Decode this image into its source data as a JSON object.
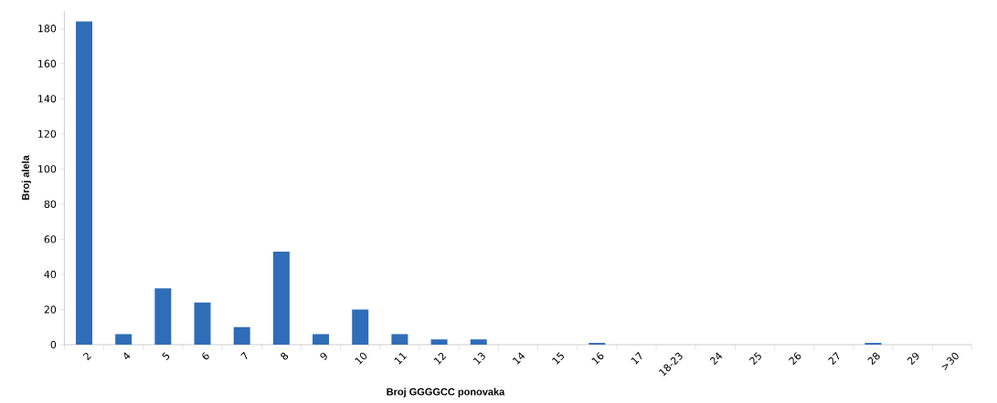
{
  "chart_data": {
    "type": "bar",
    "xlabel": "Broj GGGGCC ponovaka",
    "ylabel": "Broj alela",
    "categories": [
      "2",
      "4",
      "5",
      "6",
      "7",
      "8",
      "9",
      "10",
      "11",
      "12",
      "13",
      "14",
      "15",
      "16",
      "17",
      "18-23",
      "24",
      "25",
      "26",
      "27",
      "28",
      "29",
      ">30"
    ],
    "values": [
      184,
      6,
      32,
      24,
      10,
      53,
      6,
      20,
      6,
      3,
      3,
      0,
      0,
      1,
      0,
      0,
      0,
      0,
      0,
      0,
      1,
      0,
      0
    ],
    "color": "#2f6db8",
    "ylim": [
      0,
      190
    ],
    "yticks": [
      0,
      20,
      40,
      60,
      80,
      100,
      120,
      140,
      160,
      180
    ],
    "grid": false
  }
}
